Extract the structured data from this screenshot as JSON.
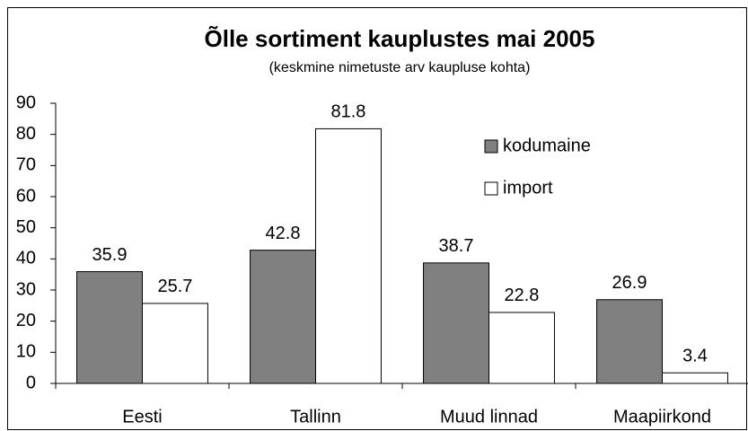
{
  "chart_data": {
    "type": "bar",
    "title": "Õlle sortiment kauplustes mai 2005",
    "subtitle": "(keskmine nimetuste arv kaupluse kohta)",
    "categories": [
      "Eesti",
      "Tallinn",
      "Muud linnad",
      "Maapiirkond"
    ],
    "series": [
      {
        "name": "kodumaine",
        "color": "#808080",
        "values": [
          35.9,
          42.8,
          38.7,
          26.9
        ]
      },
      {
        "name": "import",
        "color": "#ffffff",
        "values": [
          25.7,
          81.8,
          22.8,
          3.4
        ]
      }
    ],
    "ylim": [
      0,
      90
    ],
    "yticks": [
      0,
      10,
      20,
      30,
      40,
      50,
      60,
      70,
      80,
      90
    ],
    "grid": false,
    "legend": "upper right"
  }
}
